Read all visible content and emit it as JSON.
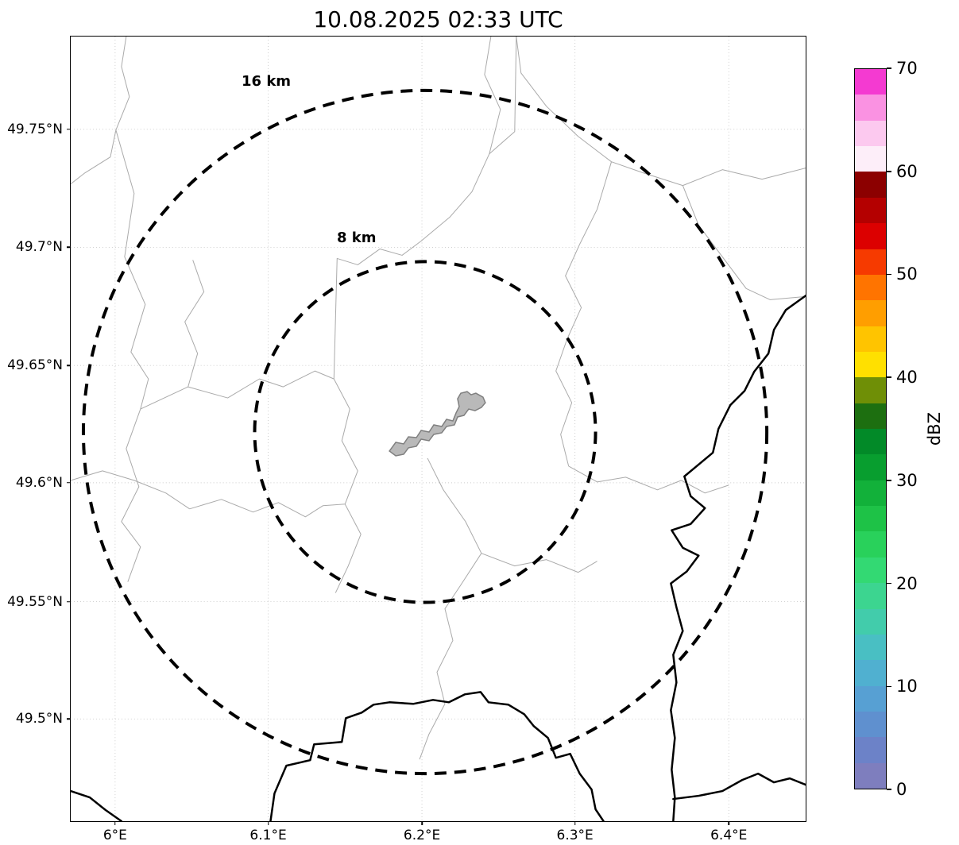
{
  "title": "10.08.2025 02:33 UTC",
  "map": {
    "x_tick_labels": [
      "6°E",
      "6.1°E",
      "6.2°E",
      "6.3°E",
      "6.4°E"
    ],
    "y_tick_labels": [
      "49.75°N",
      "49.7°N",
      "49.65°N",
      "49.6°N",
      "49.55°N",
      "49.5°N"
    ],
    "range_rings": [
      {
        "label": "16 km"
      },
      {
        "label": "8 km"
      }
    ],
    "city_fill_color": "#b9b9b9",
    "city_stroke_color": "#7f7f7f",
    "boundary_color_thin": "#aaaaaa",
    "boundary_color_thick": "#000000",
    "grid_color": "#c9c9c9"
  },
  "colorbar": {
    "label": "dBZ",
    "min": 0,
    "max": 70,
    "tick_values": [
      0,
      10,
      20,
      30,
      40,
      50,
      60,
      70
    ],
    "segment_step_dbz": 2.5,
    "colors_low_to_high": [
      "#7e7ebe",
      "#6c82c8",
      "#5f90cf",
      "#57a0d3",
      "#50b0d0",
      "#49bfc3",
      "#42ccab",
      "#3cd590",
      "#33d973",
      "#29d15b",
      "#1ec247",
      "#12b13a",
      "#089e2f",
      "#028a28",
      "#1d6f10",
      "#6f8f06",
      "#ffe000",
      "#ffc400",
      "#ff9e00",
      "#ff7400",
      "#f63a00",
      "#dc0000",
      "#b40000",
      "#8c0000",
      "#fdeef9",
      "#fcc9ef",
      "#fa92e2",
      "#f43ad1"
    ]
  },
  "chart_data": {
    "type": "heatmap",
    "title": "10.08.2025 02:33 UTC",
    "xlabel": "",
    "ylabel": "",
    "x_tick_labels": [
      "6°E",
      "6.1°E",
      "6.2°E",
      "6.3°E",
      "6.4°E"
    ],
    "y_tick_labels": [
      "49.5°N",
      "49.55°N",
      "49.6°N",
      "49.65°N",
      "49.7°N",
      "49.75°N"
    ],
    "grid": true,
    "values": [],
    "colorbar": {
      "label": "dBZ",
      "min": 0,
      "max": 70,
      "ticks": [
        0,
        10,
        20,
        30,
        40,
        50,
        60,
        70
      ]
    },
    "annotations": [
      "16 km",
      "8 km"
    ]
  }
}
